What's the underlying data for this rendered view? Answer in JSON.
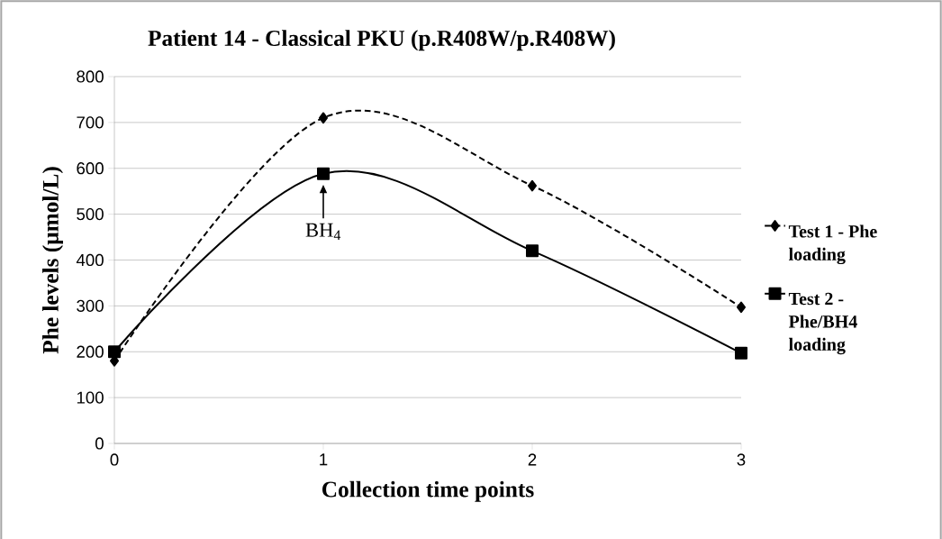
{
  "chart_data": {
    "type": "line",
    "title": "Patient 14 - Classical PKU (p.R408W/p.R408W)",
    "xlabel": "Collection time points",
    "ylabel": "Phe levels (μmol/L)",
    "x": [
      0,
      1,
      2,
      3
    ],
    "xlim": [
      0,
      3
    ],
    "xticks": [
      0,
      1,
      2,
      3
    ],
    "ylim": [
      0,
      800
    ],
    "yticks": [
      0,
      100,
      200,
      300,
      400,
      500,
      600,
      700,
      800
    ],
    "grid": "y",
    "legend": "right",
    "series": [
      {
        "name": "Test 1 - Phe loading",
        "color": "#000000",
        "marker": "diamond",
        "line_style": "dashed",
        "values": [
          180,
          710,
          562,
          297
        ]
      },
      {
        "name": "Test 2 - Phe/BH4 loading",
        "color": "#000000",
        "marker": "square",
        "line_style": "solid",
        "values": [
          200,
          588,
          420,
          197
        ]
      }
    ],
    "annotations": [
      {
        "text": "BH$_{4}$",
        "x": 1,
        "y": 588
      }
    ]
  }
}
